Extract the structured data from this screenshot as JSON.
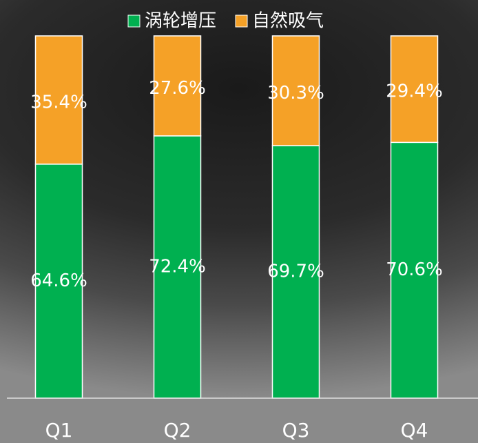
{
  "chart_data": {
    "type": "stacked-bar",
    "categories": [
      "Q1",
      "Q2",
      "Q3",
      "Q4"
    ],
    "series": [
      {
        "name": "涡轮增压",
        "color": "#00b050",
        "values": [
          64.6,
          72.4,
          69.7,
          70.6
        ],
        "value_labels": [
          "64.6%",
          "72.4%",
          "69.7%",
          "70.6%"
        ]
      },
      {
        "name": "自然吸气",
        "color": "#f5a127",
        "values": [
          35.4,
          27.6,
          30.3,
          29.4
        ],
        "value_labels": [
          "35.4%",
          "27.6%",
          "30.3%",
          "29.4%"
        ]
      }
    ],
    "legend": "top"
  }
}
